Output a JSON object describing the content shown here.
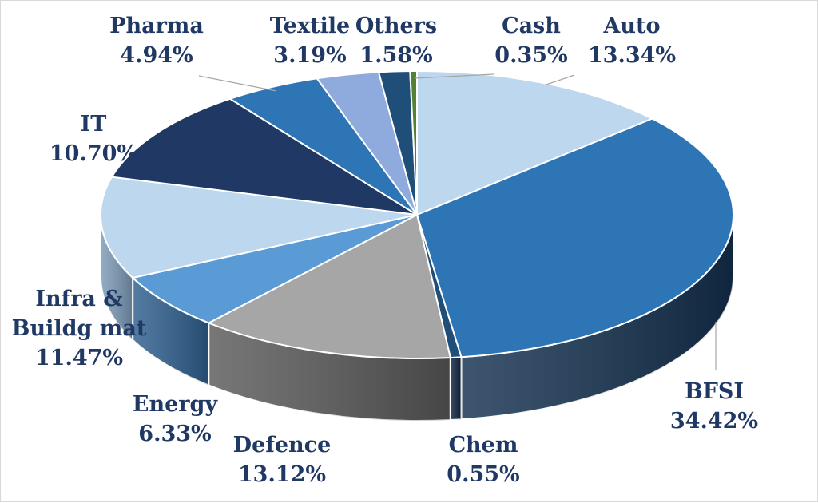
{
  "chart_data": {
    "type": "pie",
    "style": "3d",
    "title": "",
    "slices": [
      {
        "name": "Auto",
        "value": 13.34,
        "label": "13.34%",
        "color": "#bdd7ee",
        "side": "#8faac4"
      },
      {
        "name": "BFSI",
        "value": 34.42,
        "label": "34.42%",
        "color": "#2e75b6",
        "side": "#13304f"
      },
      {
        "name": "Chem",
        "value": 0.55,
        "label": "0.55%",
        "color": "#1f4e79",
        "side": "#0d2440"
      },
      {
        "name": "Defence",
        "value": 13.12,
        "label": "13.12%",
        "color": "#a6a6a6",
        "side": "#595959"
      },
      {
        "name": "Energy",
        "value": 6.33,
        "label": "6.33%",
        "color": "#5b9bd5",
        "side": "#2e5f8f"
      },
      {
        "name": "Infra & Buildg mat",
        "value": 11.47,
        "label": "11.47%",
        "color": "#bdd7ee",
        "side": "#7c9ab8"
      },
      {
        "name": "IT",
        "value": 10.7,
        "label": "10.70%",
        "color": "#203864",
        "side": "#152645"
      },
      {
        "name": "Pharma",
        "value": 4.94,
        "label": "4.94%",
        "color": "#2e75b6",
        "side": "#1f4e79"
      },
      {
        "name": "Textile",
        "value": 3.19,
        "label": "3.19%",
        "color": "#8faadc",
        "side": "#5f7aa8"
      },
      {
        "name": "Others",
        "value": 1.58,
        "label": "1.58%",
        "color": "#1f4e79",
        "side": "#13304f"
      },
      {
        "name": "Cash",
        "value": 0.35,
        "label": "0.35%",
        "color": "#548235",
        "side": "#2f4a1c"
      }
    ]
  }
}
